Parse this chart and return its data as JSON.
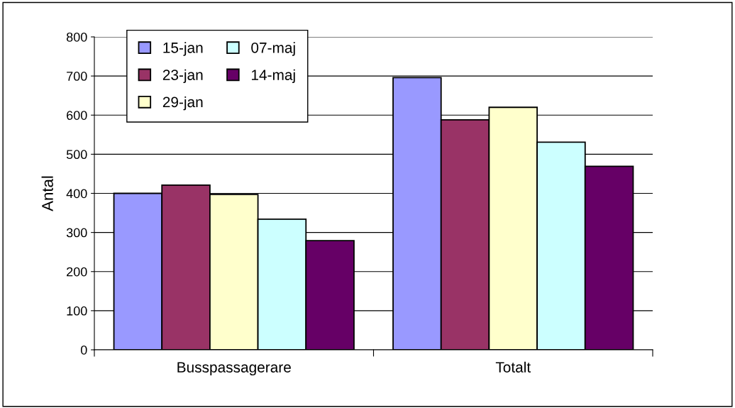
{
  "chart_data": {
    "type": "bar",
    "ylabel": "Antal",
    "categories": [
      "Busspassagerare",
      "Totalt"
    ],
    "series": [
      {
        "name": "15-jan",
        "color": "#9999ff",
        "values": [
          400,
          696
        ]
      },
      {
        "name": "23-jan",
        "color": "#993366",
        "values": [
          421,
          588
        ]
      },
      {
        "name": "29-jan",
        "color": "#ffffcc",
        "values": [
          397,
          620
        ]
      },
      {
        "name": "07-maj",
        "color": "#ccffff",
        "values": [
          334,
          531
        ]
      },
      {
        "name": "14-maj",
        "color": "#660066",
        "values": [
          279,
          469
        ]
      }
    ],
    "ylim": [
      0,
      800
    ],
    "yticks": [
      0,
      100,
      200,
      300,
      400,
      500,
      600,
      700,
      800
    ],
    "grid": "y",
    "legend": "top left"
  }
}
